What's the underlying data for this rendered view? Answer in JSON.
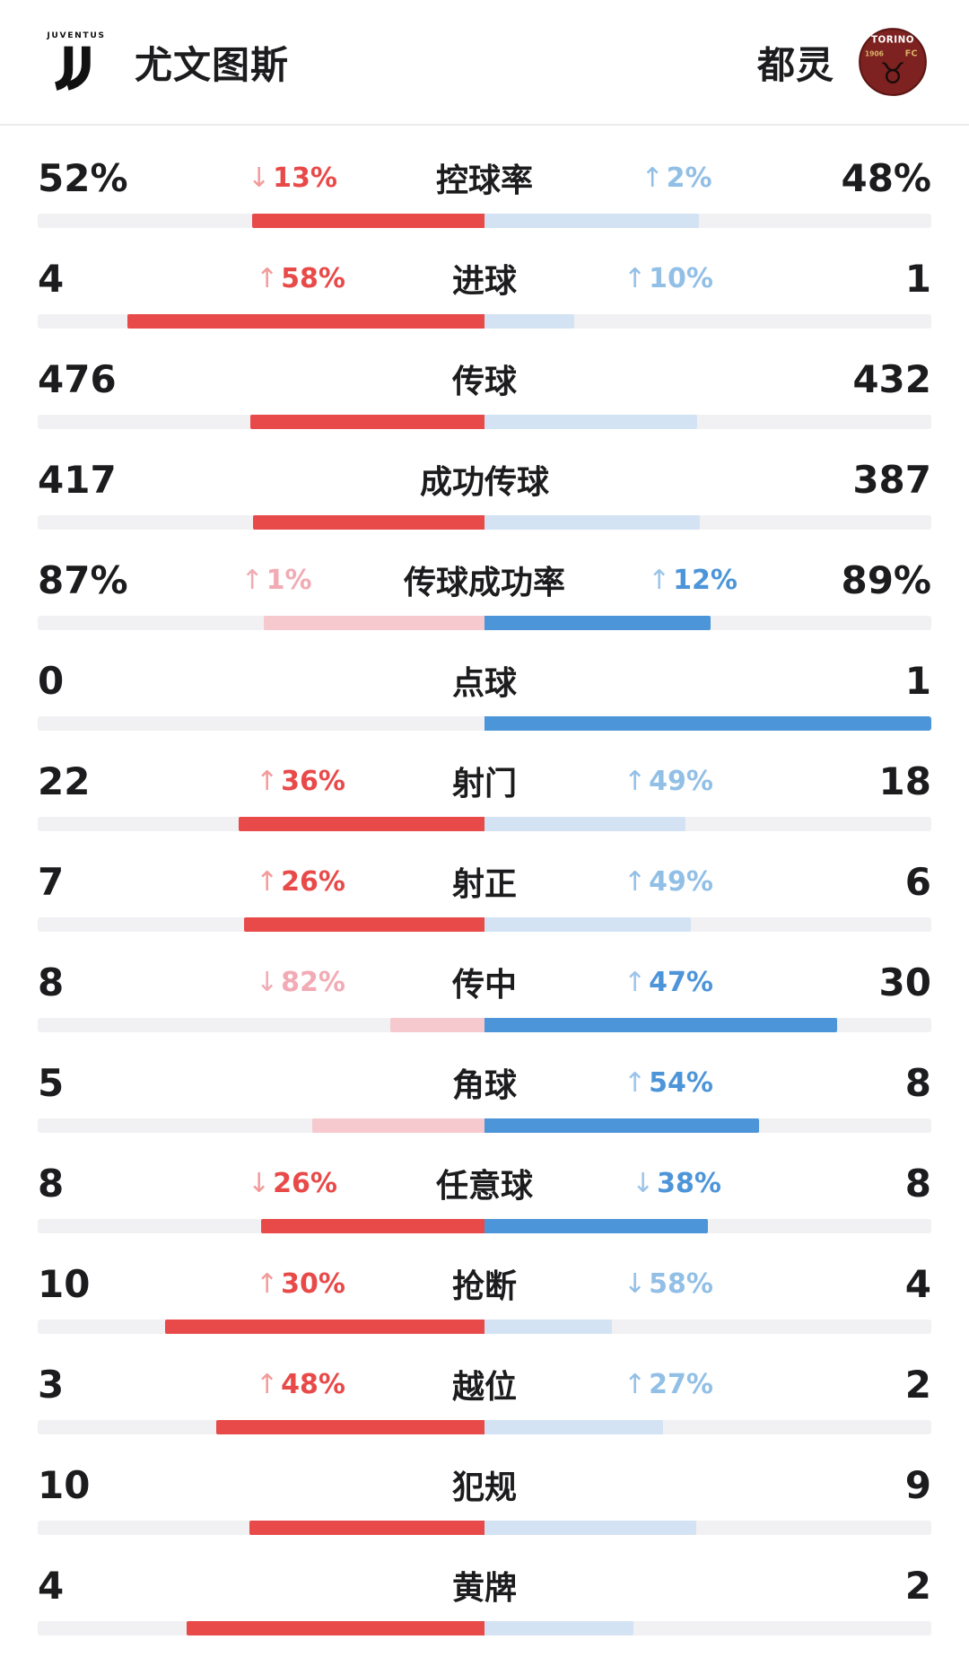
{
  "header": {
    "home_team": {
      "name": "尤文图斯",
      "logo": {
        "wordmark": "JUVENTUS"
      }
    },
    "away_team": {
      "name": "都灵",
      "logo": {
        "wordmark": "TORINO",
        "fc": "FC",
        "year": "1906",
        "bull_icon": "♉"
      }
    }
  },
  "tones": {
    "red": {
      "text": "#e84a49",
      "bar": "#e84a49"
    },
    "pink": {
      "text": "#f2abb4",
      "bar": "#f6c9ce"
    },
    "blue": {
      "text": "#4d95d9",
      "bar": "#4d95d9"
    },
    "lightblue": {
      "text": "#92bfe6",
      "bar": "#d3e3f3"
    }
  },
  "track_color": "#f1f1f3",
  "stats": [
    {
      "label": "控球率",
      "home": "52%",
      "away": "48%",
      "home_trend": {
        "arrow": "↓",
        "value": "13%",
        "tone": "red"
      },
      "away_trend": {
        "arrow": "↑",
        "value": "2%",
        "tone": "lightblue"
      },
      "bar": {
        "home_pct": 52,
        "away_pct": 48,
        "home_tone": "red",
        "away_tone": "lightblue"
      }
    },
    {
      "label": "进球",
      "home": "4",
      "away": "1",
      "home_trend": {
        "arrow": "↑",
        "value": "58%",
        "tone": "red"
      },
      "away_trend": {
        "arrow": "↑",
        "value": "10%",
        "tone": "lightblue"
      },
      "bar": {
        "home_pct": 80,
        "away_pct": 20,
        "home_tone": "red",
        "away_tone": "lightblue"
      }
    },
    {
      "label": "传球",
      "home": "476",
      "away": "432",
      "home_trend": null,
      "away_trend": null,
      "bar": {
        "home_pct": 52.4,
        "away_pct": 47.6,
        "home_tone": "red",
        "away_tone": "lightblue"
      }
    },
    {
      "label": "成功传球",
      "home": "417",
      "away": "387",
      "home_trend": null,
      "away_trend": null,
      "bar": {
        "home_pct": 51.9,
        "away_pct": 48.1,
        "home_tone": "red",
        "away_tone": "lightblue"
      }
    },
    {
      "label": "传球成功率",
      "home": "87%",
      "away": "89%",
      "home_trend": {
        "arrow": "↑",
        "value": "1%",
        "tone": "pink"
      },
      "away_trend": {
        "arrow": "↑",
        "value": "12%",
        "tone": "blue"
      },
      "bar": {
        "home_pct": 49.4,
        "away_pct": 50.6,
        "home_tone": "pink",
        "away_tone": "blue"
      }
    },
    {
      "label": "点球",
      "home": "0",
      "away": "1",
      "home_trend": null,
      "away_trend": null,
      "bar": {
        "home_pct": 0,
        "away_pct": 100,
        "home_tone": "red",
        "away_tone": "blue"
      }
    },
    {
      "label": "射门",
      "home": "22",
      "away": "18",
      "home_trend": {
        "arrow": "↑",
        "value": "36%",
        "tone": "red"
      },
      "away_trend": {
        "arrow": "↑",
        "value": "49%",
        "tone": "lightblue"
      },
      "bar": {
        "home_pct": 55,
        "away_pct": 45,
        "home_tone": "red",
        "away_tone": "lightblue"
      }
    },
    {
      "label": "射正",
      "home": "7",
      "away": "6",
      "home_trend": {
        "arrow": "↑",
        "value": "26%",
        "tone": "red"
      },
      "away_trend": {
        "arrow": "↑",
        "value": "49%",
        "tone": "lightblue"
      },
      "bar": {
        "home_pct": 53.8,
        "away_pct": 46.2,
        "home_tone": "red",
        "away_tone": "lightblue"
      }
    },
    {
      "label": "传中",
      "home": "8",
      "away": "30",
      "home_trend": {
        "arrow": "↓",
        "value": "82%",
        "tone": "pink"
      },
      "away_trend": {
        "arrow": "↑",
        "value": "47%",
        "tone": "blue"
      },
      "bar": {
        "home_pct": 21.1,
        "away_pct": 78.9,
        "home_tone": "pink",
        "away_tone": "blue"
      }
    },
    {
      "label": "角球",
      "home": "5",
      "away": "8",
      "home_trend": null,
      "away_trend": {
        "arrow": "↑",
        "value": "54%",
        "tone": "blue"
      },
      "bar": {
        "home_pct": 38.5,
        "away_pct": 61.5,
        "home_tone": "pink",
        "away_tone": "blue"
      }
    },
    {
      "label": "任意球",
      "home": "8",
      "away": "8",
      "home_trend": {
        "arrow": "↓",
        "value": "26%",
        "tone": "red"
      },
      "away_trend": {
        "arrow": "↓",
        "value": "38%",
        "tone": "blue"
      },
      "bar": {
        "home_pct": 50,
        "away_pct": 50,
        "home_tone": "red",
        "away_tone": "blue"
      }
    },
    {
      "label": "抢断",
      "home": "10",
      "away": "4",
      "home_trend": {
        "arrow": "↑",
        "value": "30%",
        "tone": "red"
      },
      "away_trend": {
        "arrow": "↓",
        "value": "58%",
        "tone": "lightblue"
      },
      "bar": {
        "home_pct": 71.4,
        "away_pct": 28.6,
        "home_tone": "red",
        "away_tone": "lightblue"
      }
    },
    {
      "label": "越位",
      "home": "3",
      "away": "2",
      "home_trend": {
        "arrow": "↑",
        "value": "48%",
        "tone": "red"
      },
      "away_trend": {
        "arrow": "↑",
        "value": "27%",
        "tone": "lightblue"
      },
      "bar": {
        "home_pct": 60,
        "away_pct": 40,
        "home_tone": "red",
        "away_tone": "lightblue"
      }
    },
    {
      "label": "犯规",
      "home": "10",
      "away": "9",
      "home_trend": null,
      "away_trend": null,
      "bar": {
        "home_pct": 52.6,
        "away_pct": 47.4,
        "home_tone": "red",
        "away_tone": "lightblue"
      }
    },
    {
      "label": "黄牌",
      "home": "4",
      "away": "2",
      "home_trend": null,
      "away_trend": null,
      "bar": {
        "home_pct": 66.7,
        "away_pct": 33.3,
        "home_tone": "red",
        "away_tone": "lightblue"
      }
    }
  ]
}
